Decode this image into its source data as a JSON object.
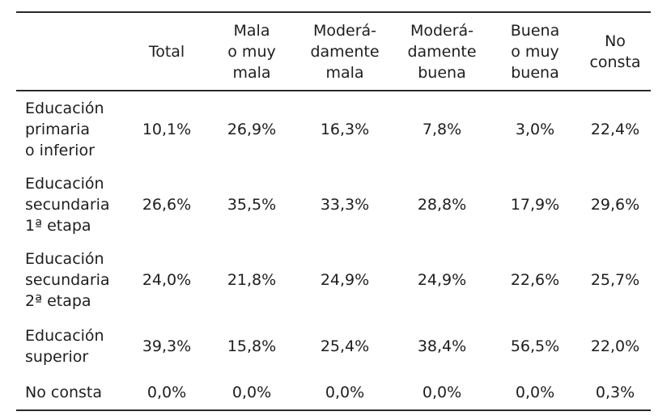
{
  "table": {
    "headers": [
      "",
      "Total",
      "Mala\no muy\nmala",
      "Moderá-\ndamente\nmala",
      "Moderá-\ndamente\nbuena",
      "Buena\no muy\nbuena",
      "No\nconsta"
    ],
    "rows": [
      {
        "label": "Educación\nprimaria\no inferior",
        "values": [
          "10,1%",
          "26,9%",
          "16,3%",
          "7,8%",
          "3,0%",
          "22,4%"
        ]
      },
      {
        "label": "Educación\nsecundaria\n1ª etapa",
        "values": [
          "26,6%",
          "35,5%",
          "33,3%",
          "28,8%",
          "17,9%",
          "29,6%"
        ]
      },
      {
        "label": "Educación\nsecundaria\n2ª etapa",
        "values": [
          "24,0%",
          "21,8%",
          "24,9%",
          "24,9%",
          "22,6%",
          "25,7%"
        ]
      },
      {
        "label": "Educación\nsuperior",
        "values": [
          "39,3%",
          "15,8%",
          "25,4%",
          "38,4%",
          "56,5%",
          "22,0%"
        ]
      },
      {
        "label": "No consta",
        "values": [
          "0,0%",
          "0,0%",
          "0,0%",
          "0,0%",
          "0,0%",
          "0,3%"
        ]
      }
    ]
  }
}
